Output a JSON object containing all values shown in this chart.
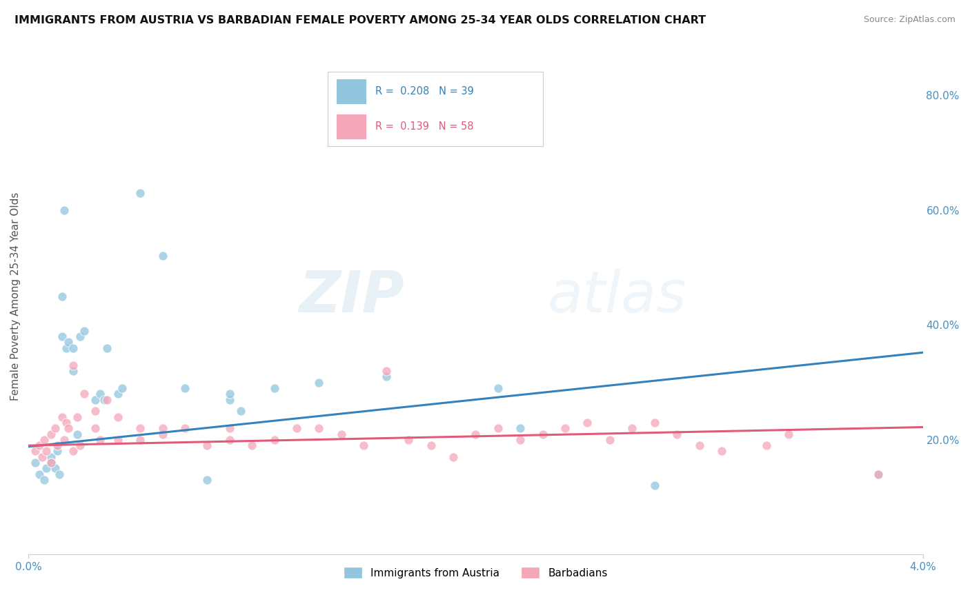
{
  "title": "IMMIGRANTS FROM AUSTRIA VS BARBADIAN FEMALE POVERTY AMONG 25-34 YEAR OLDS CORRELATION CHART",
  "source": "Source: ZipAtlas.com",
  "ylabel": "Female Poverty Among 25-34 Year Olds",
  "right_yticks": [
    "80.0%",
    "60.0%",
    "40.0%",
    "20.0%"
  ],
  "right_ytick_vals": [
    0.8,
    0.6,
    0.4,
    0.2
  ],
  "dot1_color": "#92c5de",
  "dot2_color": "#f4a6b8",
  "trend1_color": "#3182bd",
  "trend2_color": "#e05a7a",
  "background_color": "#ffffff",
  "grid_color": "#e0e0e0",
  "xlim": [
    0.0,
    0.04
  ],
  "ylim": [
    0.0,
    0.9
  ],
  "blue_x": [
    0.0003,
    0.0005,
    0.0007,
    0.0008,
    0.001,
    0.001,
    0.0012,
    0.0013,
    0.0014,
    0.0015,
    0.0015,
    0.0016,
    0.0017,
    0.0018,
    0.002,
    0.002,
    0.0022,
    0.0023,
    0.0025,
    0.003,
    0.0032,
    0.0034,
    0.0035,
    0.004,
    0.0042,
    0.005,
    0.006,
    0.007,
    0.008,
    0.009,
    0.009,
    0.0095,
    0.011,
    0.013,
    0.016,
    0.021,
    0.022,
    0.028,
    0.038
  ],
  "blue_y": [
    0.16,
    0.14,
    0.13,
    0.15,
    0.17,
    0.16,
    0.15,
    0.18,
    0.14,
    0.38,
    0.45,
    0.6,
    0.36,
    0.37,
    0.32,
    0.36,
    0.21,
    0.38,
    0.39,
    0.27,
    0.28,
    0.27,
    0.36,
    0.28,
    0.29,
    0.63,
    0.52,
    0.29,
    0.13,
    0.27,
    0.28,
    0.25,
    0.29,
    0.3,
    0.31,
    0.29,
    0.22,
    0.12,
    0.14
  ],
  "pink_x": [
    0.0003,
    0.0005,
    0.0006,
    0.0007,
    0.0008,
    0.001,
    0.001,
    0.0012,
    0.0013,
    0.0015,
    0.0016,
    0.0017,
    0.0018,
    0.002,
    0.002,
    0.0022,
    0.0023,
    0.0025,
    0.003,
    0.003,
    0.0032,
    0.0035,
    0.004,
    0.004,
    0.005,
    0.005,
    0.006,
    0.006,
    0.007,
    0.008,
    0.009,
    0.009,
    0.01,
    0.011,
    0.012,
    0.013,
    0.014,
    0.015,
    0.016,
    0.017,
    0.018,
    0.019,
    0.02,
    0.021,
    0.022,
    0.023,
    0.024,
    0.025,
    0.026,
    0.027,
    0.028,
    0.029,
    0.03,
    0.031,
    0.033,
    0.034,
    0.038
  ],
  "pink_y": [
    0.18,
    0.19,
    0.17,
    0.2,
    0.18,
    0.21,
    0.16,
    0.22,
    0.19,
    0.24,
    0.2,
    0.23,
    0.22,
    0.18,
    0.33,
    0.24,
    0.19,
    0.28,
    0.22,
    0.25,
    0.2,
    0.27,
    0.24,
    0.2,
    0.22,
    0.2,
    0.21,
    0.22,
    0.22,
    0.19,
    0.2,
    0.22,
    0.19,
    0.2,
    0.22,
    0.22,
    0.21,
    0.19,
    0.32,
    0.2,
    0.19,
    0.17,
    0.21,
    0.22,
    0.2,
    0.21,
    0.22,
    0.23,
    0.2,
    0.22,
    0.23,
    0.21,
    0.19,
    0.18,
    0.19,
    0.21,
    0.14
  ]
}
